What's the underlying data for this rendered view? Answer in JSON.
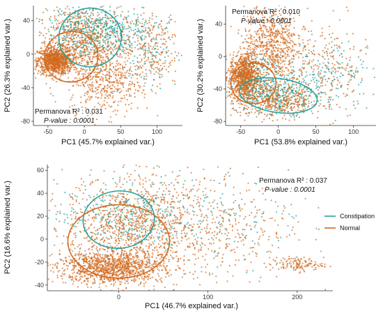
{
  "colors": {
    "constipation": "#2aa19a",
    "normal": "#d2691e"
  },
  "legend": {
    "placement": "right",
    "items": [
      "Constipation",
      "Normal"
    ]
  },
  "chart_data": [
    {
      "type": "scatter",
      "xlabel": "PC1 (45.7% explained var.)",
      "ylabel": "PC2 (26.3% explained var.)",
      "xlim": [
        -70,
        135
      ],
      "ylim": [
        -85,
        58
      ],
      "xticks": [
        -50,
        0,
        50,
        100
      ],
      "yticks": [
        -80,
        -40,
        0,
        40
      ],
      "annotation": {
        "r2_label": "Permanova R² : 0.031",
        "p_label": "P-value : 0.0001",
        "placement": "bottom-left"
      },
      "series": [
        {
          "name": "Constipation",
          "point_count": 650,
          "clusters": [
            {
              "cx": 5,
              "cy": 30,
              "sx": 28,
              "sy": 16,
              "w": 0.55
            },
            {
              "cx": 45,
              "cy": 25,
              "sx": 30,
              "sy": 15,
              "w": 0.3
            },
            {
              "cx": 90,
              "cy": 5,
              "sx": 20,
              "sy": 20,
              "w": 0.15
            }
          ],
          "ellipse": {
            "cx": 8,
            "cy": 20,
            "rx": 43,
            "ry": 35,
            "angle": -5
          }
        },
        {
          "name": "Normal",
          "point_count": 2400,
          "clusters": [
            {
              "cx": -40,
              "cy": -8,
              "sx": 12,
              "sy": 8,
              "w": 0.4
            },
            {
              "cx": -5,
              "cy": 15,
              "sx": 30,
              "sy": 22,
              "w": 0.3
            },
            {
              "cx": 30,
              "cy": -30,
              "sx": 25,
              "sy": 20,
              "w": 0.2
            },
            {
              "cx": 90,
              "cy": 10,
              "sx": 20,
              "sy": 25,
              "w": 0.1
            }
          ],
          "ellipse": {
            "cx": -18,
            "cy": -3,
            "rx": 37,
            "ry": 30,
            "angle": -15
          }
        }
      ]
    },
    {
      "type": "scatter",
      "xlabel": "PC1 (53.8% explained var.)",
      "ylabel": "PC2 (30.2% explained var.)",
      "xlim": [
        -70,
        130
      ],
      "ylim": [
        -85,
        63
      ],
      "xticks": [
        -50,
        0,
        50,
        100
      ],
      "yticks": [
        -80,
        -40,
        0,
        40
      ],
      "annotation": {
        "r2_label": "Permanova R² : 0.010",
        "p_label": "P-value : 0.0001",
        "placement": "top-left"
      },
      "series": [
        {
          "name": "Constipation",
          "point_count": 600,
          "clusters": [
            {
              "cx": 0,
              "cy": -45,
              "sx": 30,
              "sy": 12,
              "w": 0.6
            },
            {
              "cx": 70,
              "cy": -20,
              "sx": 30,
              "sy": 20,
              "w": 0.25
            },
            {
              "cx": -30,
              "cy": -20,
              "sx": 15,
              "sy": 15,
              "w": 0.15
            }
          ],
          "ellipse": {
            "cx": 0,
            "cy": -48,
            "rx": 52,
            "ry": 21,
            "angle": 8
          }
        },
        {
          "name": "Normal",
          "point_count": 2300,
          "clusters": [
            {
              "cx": -45,
              "cy": -25,
              "sx": 10,
              "sy": 14,
              "w": 0.4
            },
            {
              "cx": -10,
              "cy": 15,
              "sx": 18,
              "sy": 25,
              "w": 0.3
            },
            {
              "cx": 0,
              "cy": -55,
              "sx": 30,
              "sy": 10,
              "w": 0.2
            },
            {
              "cx": 60,
              "cy": -10,
              "sx": 30,
              "sy": 30,
              "w": 0.1
            }
          ],
          "ellipse": {
            "cx": -33,
            "cy": -33,
            "rx": 30,
            "ry": 25,
            "angle": 0
          }
        }
      ]
    },
    {
      "type": "scatter",
      "xlabel": "PC1 (46.7% explained var.)",
      "ylabel": "PC2 (16.6% explained var.)",
      "xlim": [
        -80,
        240
      ],
      "ylim": [
        -45,
        65
      ],
      "xticks": [
        0,
        100,
        200
      ],
      "yticks": [
        -40,
        -20,
        0,
        20,
        40,
        60
      ],
      "annotation": {
        "r2_label": "Permanova R² : 0.037",
        "p_label": "P-value : 0.0001",
        "placement": "top-right"
      },
      "series": [
        {
          "name": "Constipation",
          "point_count": 450,
          "clusters": [
            {
              "cx": 0,
              "cy": 20,
              "sx": 35,
              "sy": 15,
              "w": 0.55
            },
            {
              "cx": 70,
              "cy": 25,
              "sx": 50,
              "sy": 18,
              "w": 0.35
            },
            {
              "cx": 150,
              "cy": 10,
              "sx": 30,
              "sy": 20,
              "w": 0.1
            }
          ],
          "ellipse": {
            "cx": 0,
            "cy": 17,
            "rx": 40,
            "ry": 25,
            "angle": -5
          }
        },
        {
          "name": "Normal",
          "point_count": 2600,
          "clusters": [
            {
              "cx": -10,
              "cy": -25,
              "sx": 30,
              "sy": 7,
              "w": 0.4
            },
            {
              "cx": 10,
              "cy": 10,
              "sx": 35,
              "sy": 22,
              "w": 0.35
            },
            {
              "cx": 90,
              "cy": 10,
              "sx": 50,
              "sy": 25,
              "w": 0.2
            },
            {
              "cx": 200,
              "cy": -22,
              "sx": 15,
              "sy": 3,
              "w": 0.05
            }
          ],
          "ellipse": {
            "cx": 0,
            "cy": -2,
            "rx": 57,
            "ry": 32,
            "angle": 0
          }
        }
      ]
    }
  ]
}
